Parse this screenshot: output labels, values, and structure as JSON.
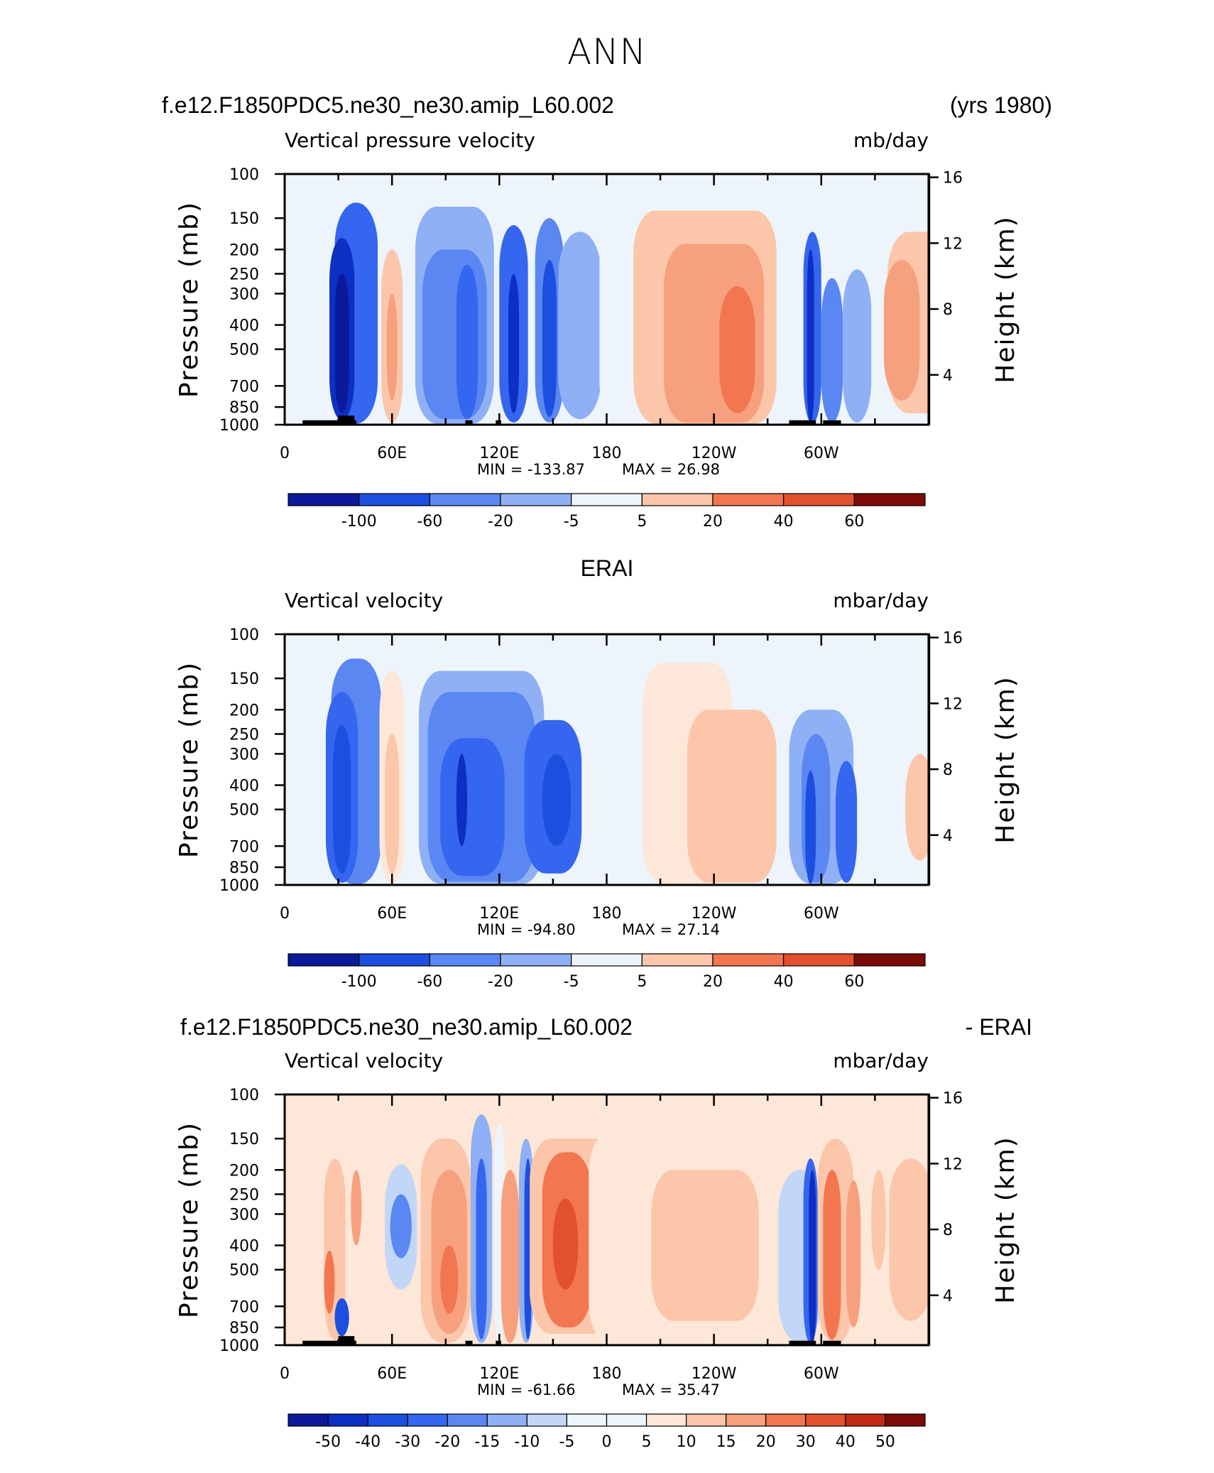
{
  "figure_title": "ANN",
  "case_name": "f.e12.F1850PDC5.ne30_ne30.amip_L60.002",
  "years": "(yrs 1980)",
  "chart_data": [
    {
      "type": "heatmap",
      "panel": "top",
      "title": "f.e12.F1850PDC5.ne30_ne30.amip_L60.002",
      "title_right": "(yrs 1980)",
      "variable": "Vertical pressure velocity",
      "units": "mb/day",
      "ylabel": "Pressure (mb)",
      "y2label": "Height (km)",
      "x_ticks": [
        "0",
        "60E",
        "120E",
        "180",
        "120W",
        "60W"
      ],
      "y_ticks": [
        "100",
        "150",
        "200",
        "250",
        "300",
        "400",
        "500",
        "700",
        "850",
        "1000"
      ],
      "y2_ticks": [
        "16",
        "12",
        "8",
        "4"
      ],
      "min_text": "MIN = -133.87",
      "max_text": "MAX =   26.98",
      "min": -133.87,
      "max": 26.98,
      "colorbar_labels": [
        "-100",
        "-60",
        "-20",
        "-5",
        "5",
        "20",
        "40",
        "60"
      ]
    },
    {
      "type": "heatmap",
      "panel": "middle",
      "title": "ERAI",
      "variable": "Vertical velocity",
      "units": "mbar/day",
      "ylabel": "Pressure (mb)",
      "y2label": "Height (km)",
      "x_ticks": [
        "0",
        "60E",
        "120E",
        "180",
        "120W",
        "60W"
      ],
      "y_ticks": [
        "100",
        "150",
        "200",
        "250",
        "300",
        "400",
        "500",
        "700",
        "850",
        "1000"
      ],
      "y2_ticks": [
        "16",
        "12",
        "8",
        "4"
      ],
      "min_text": "MIN = -94.80",
      "max_text": "MAX =   27.14",
      "min": -94.8,
      "max": 27.14,
      "colorbar_labels": [
        "-100",
        "-60",
        "-20",
        "-5",
        "5",
        "20",
        "40",
        "60"
      ]
    },
    {
      "type": "heatmap",
      "panel": "bottom",
      "title": "f.e12.F1850PDC5.ne30_ne30.amip_L60.002",
      "title_right": "- ERAI",
      "variable": "Vertical velocity",
      "units": "mbar/day",
      "ylabel": "Pressure (mb)",
      "y2label": "Height (km)",
      "x_ticks": [
        "0",
        "60E",
        "120E",
        "180",
        "120W",
        "60W"
      ],
      "y_ticks": [
        "100",
        "150",
        "200",
        "250",
        "300",
        "400",
        "500",
        "700",
        "850",
        "1000"
      ],
      "y2_ticks": [
        "16",
        "12",
        "8",
        "4"
      ],
      "min_text": "MIN = -61.66",
      "max_text": "MAX =   35.47",
      "min": -61.66,
      "max": 35.47,
      "colorbar_labels": [
        "-50",
        "-40",
        "-30",
        "-20",
        "-15",
        "-10",
        "-5",
        "0",
        "5",
        "10",
        "15",
        "20",
        "30",
        "40",
        "50"
      ]
    }
  ],
  "colors": {
    "colorbar": [
      "#0a1a9a",
      "#0d2fc4",
      "#1c4fe0",
      "#3566f0",
      "#5a87f2",
      "#8fb0f4",
      "#c2d6f7",
      "#eef4fb",
      "#fde7d8",
      "#fbc6aa",
      "#f6a07e",
      "#f27650",
      "#e2502d",
      "#c12a14",
      "#7c0a06"
    ],
    "frame": "#000000"
  }
}
